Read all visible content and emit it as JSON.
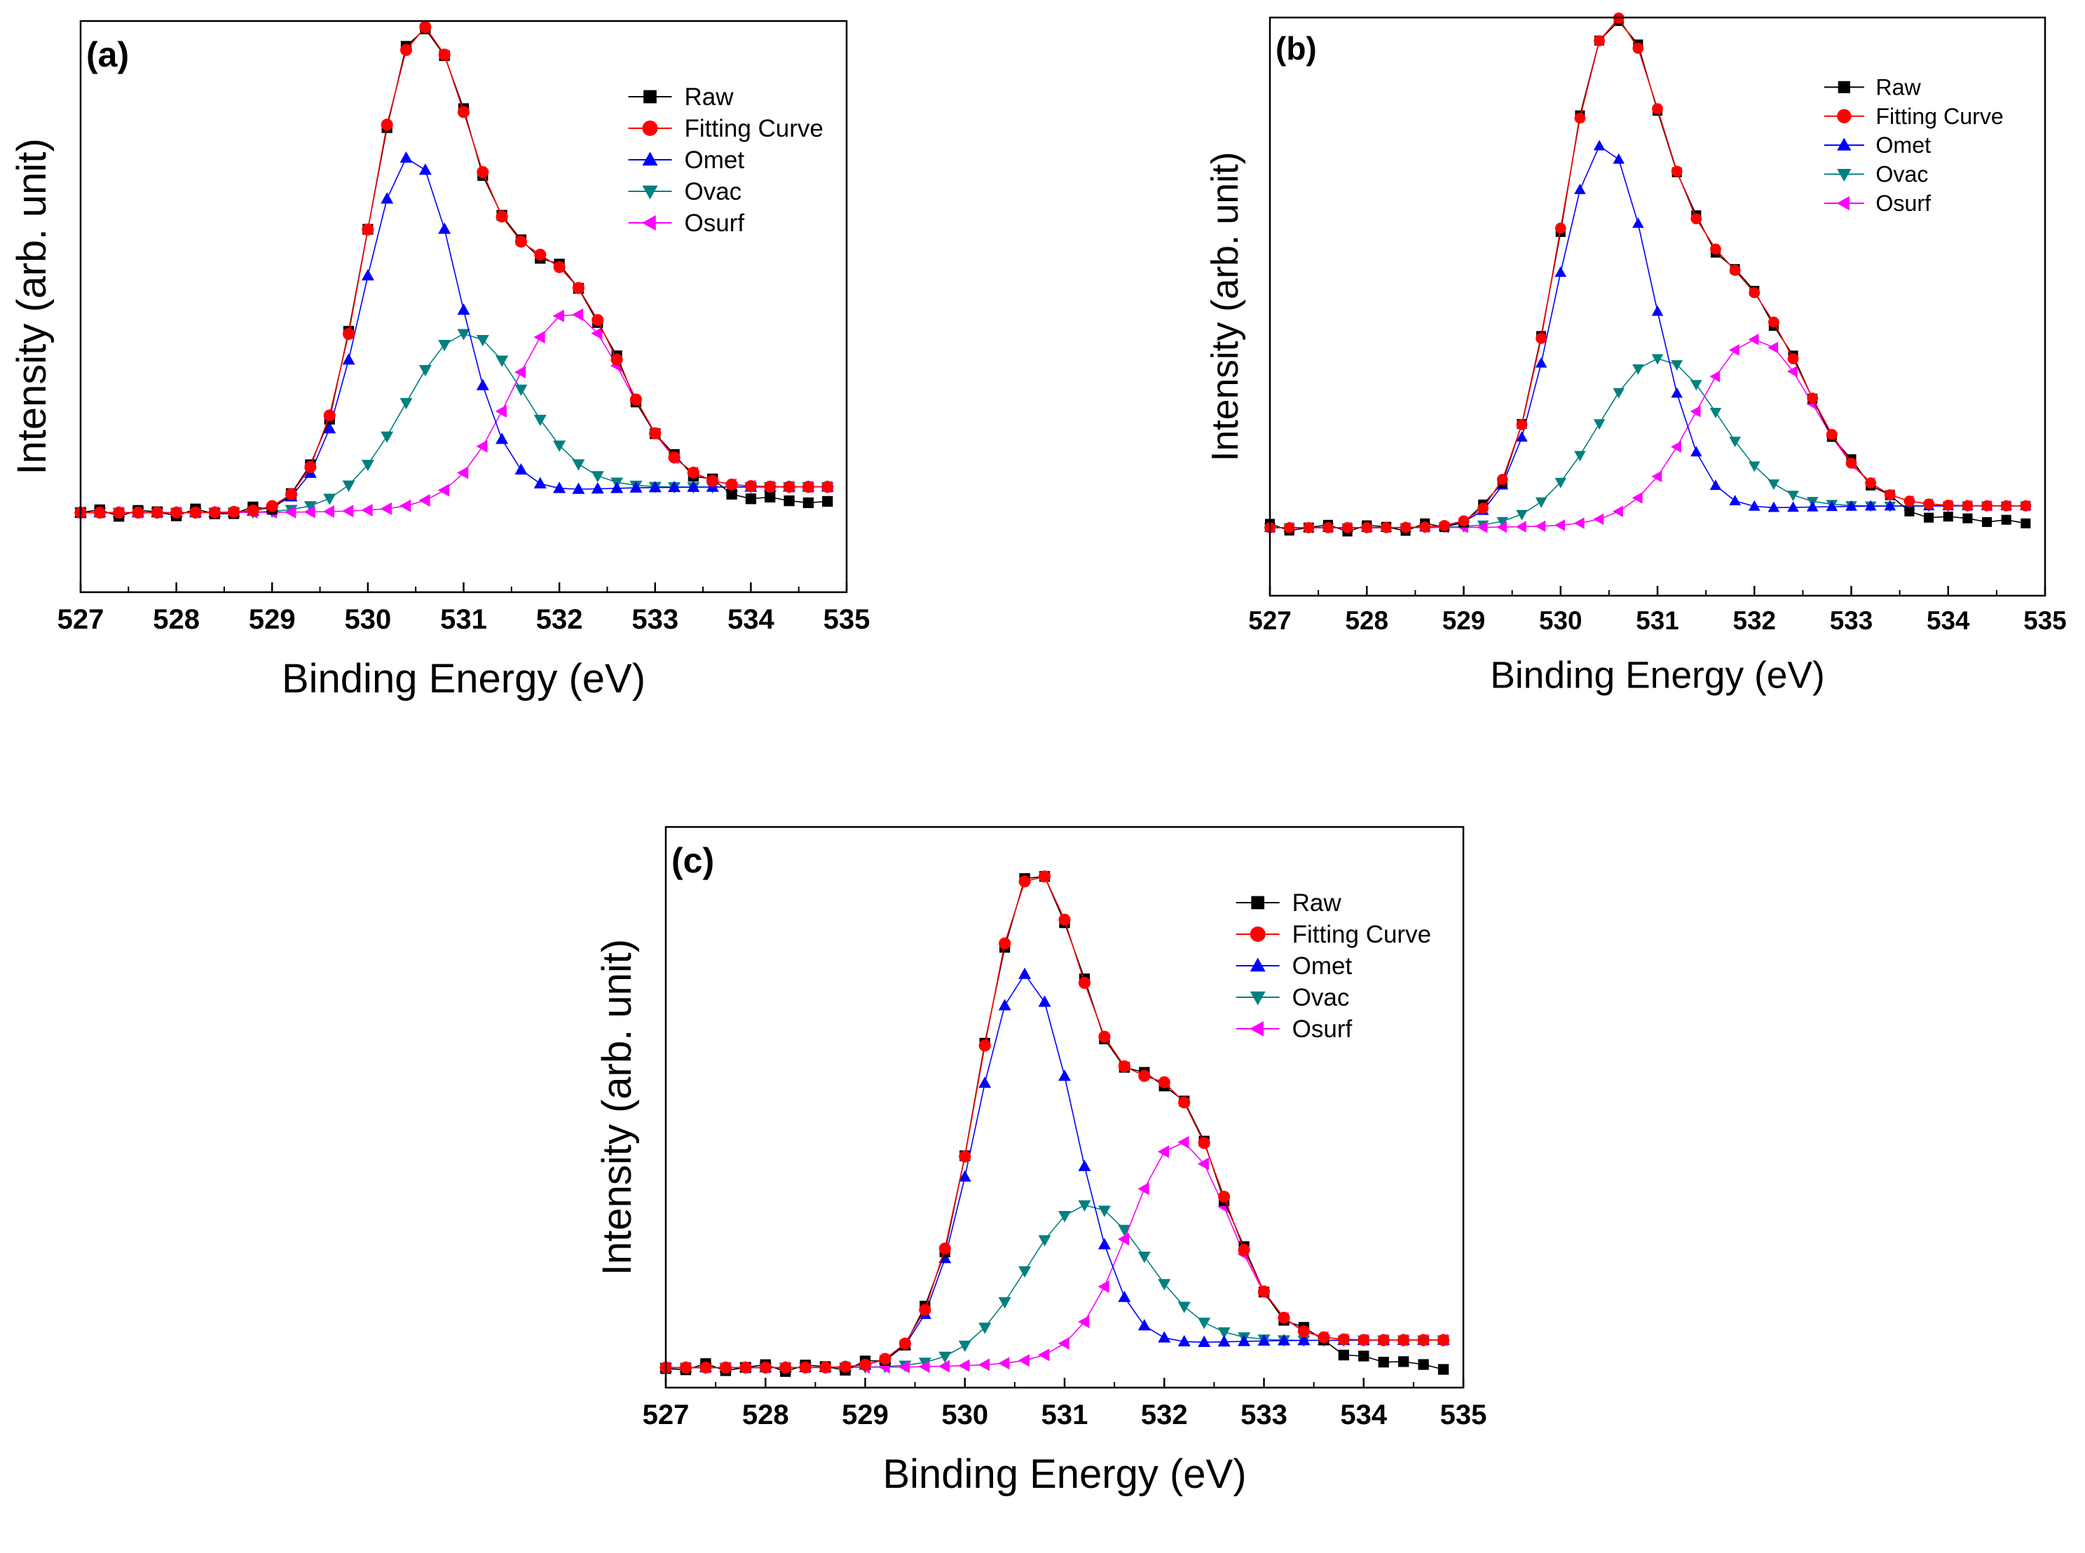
{
  "figure": {
    "legend_labels": [
      "Raw",
      "Fitting Curve",
      "Omet",
      "Ovac",
      "Osurf"
    ]
  },
  "chart_data": [
    {
      "type": "line",
      "panel": "(a)",
      "title": "",
      "xlabel": "Binding Energy (eV)",
      "ylabel": "Intensity (arb. unit)",
      "xlim": [
        527,
        535
      ],
      "ylim": [
        -0.17,
        1.05
      ],
      "x_ticks": [
        527,
        528,
        529,
        530,
        531,
        532,
        533,
        534,
        535
      ],
      "y_ticks_shown": false,
      "legend_position": "top-right",
      "data_range": [
        527.0,
        534.8
      ],
      "step": 0.2,
      "components": [
        {
          "name": "Omet",
          "center": 530.45,
          "amplitude": 0.752,
          "sigma": 0.5
        },
        {
          "name": "Ovac",
          "center": 531.0,
          "amplitude": 0.36,
          "sigma": 0.62
        },
        {
          "name": "Osurf",
          "center": 532.1,
          "amplitude": 0.38,
          "sigma": 0.58
        }
      ],
      "baseline": {
        "left": 0.0,
        "right": 0.055,
        "center": 531.2,
        "width": 0.5
      },
      "raw_tail": {
        "start": 533.8,
        "end_value": 0.02
      },
      "series": [
        {
          "name": "Raw",
          "color": "#000000",
          "marker": "square"
        },
        {
          "name": "Fitting Curve",
          "color": "#ff0000",
          "marker": "circle"
        },
        {
          "name": "Omet",
          "color": "#0000ff",
          "marker": "triangle-up"
        },
        {
          "name": "Ovac",
          "color": "#008080",
          "marker": "triangle-down"
        },
        {
          "name": "Osurf",
          "color": "#ff00ff",
          "marker": "triangle-left"
        }
      ]
    },
    {
      "type": "line",
      "panel": "(b)",
      "title": "",
      "xlabel": "Binding Energy (eV)",
      "ylabel": "Intensity (arb. unit)",
      "xlim": [
        527,
        535
      ],
      "ylim": [
        -0.14,
        1.05
      ],
      "x_ticks": [
        527,
        528,
        529,
        530,
        531,
        532,
        533,
        534,
        535
      ],
      "y_ticks_shown": false,
      "legend_position": "top-right",
      "data_range": [
        527.0,
        534.8
      ],
      "step": 0.2,
      "components": [
        {
          "name": "Omet",
          "center": 530.45,
          "amplitude": 0.782,
          "sigma": 0.5
        },
        {
          "name": "Ovac",
          "center": 531.0,
          "amplitude": 0.33,
          "sigma": 0.62
        },
        {
          "name": "Osurf",
          "center": 532.0,
          "amplitude": 0.35,
          "sigma": 0.6
        }
      ],
      "baseline": {
        "left": 0.0,
        "right": 0.045,
        "center": 531.2,
        "width": 0.5
      },
      "raw_tail": {
        "start": 533.6,
        "end_value": 0.01
      },
      "series": [
        {
          "name": "Raw",
          "color": "#000000",
          "marker": "square"
        },
        {
          "name": "Fitting Curve",
          "color": "#ff0000",
          "marker": "circle"
        },
        {
          "name": "Omet",
          "color": "#0000ff",
          "marker": "triangle-up"
        },
        {
          "name": "Ovac",
          "color": "#008080",
          "marker": "triangle-down"
        },
        {
          "name": "Osurf",
          "color": "#ff00ff",
          "marker": "triangle-left"
        }
      ]
    },
    {
      "type": "line",
      "panel": "(c)",
      "title": "",
      "xlabel": "Binding Energy (eV)",
      "ylabel": "Intensity (arb. unit)",
      "xlim": [
        527,
        535
      ],
      "ylim": [
        -0.04,
        1.08
      ],
      "x_ticks": [
        527,
        528,
        529,
        530,
        531,
        532,
        533,
        534,
        535
      ],
      "y_ticks_shown": false,
      "legend_position": "top-right",
      "data_range": [
        527.0,
        534.8
      ],
      "step": 0.2,
      "components": [
        {
          "name": "Omet",
          "center": 530.6,
          "amplitude": 0.775,
          "sigma": 0.5
        },
        {
          "name": "Ovac",
          "center": 531.2,
          "amplitude": 0.3,
          "sigma": 0.6
        },
        {
          "name": "Osurf",
          "center": 532.15,
          "amplitude": 0.405,
          "sigma": 0.5
        }
      ],
      "baseline": {
        "left": 0.0,
        "right": 0.055,
        "center": 531.3,
        "width": 0.5
      },
      "raw_tail": {
        "start": 533.8,
        "end_value": 0.0
      },
      "series": [
        {
          "name": "Raw",
          "color": "#000000",
          "marker": "square"
        },
        {
          "name": "Fitting Curve",
          "color": "#ff0000",
          "marker": "circle"
        },
        {
          "name": "Omet",
          "color": "#0000ff",
          "marker": "triangle-up"
        },
        {
          "name": "Ovac",
          "color": "#008080",
          "marker": "triangle-down"
        },
        {
          "name": "Osurf",
          "color": "#ff00ff",
          "marker": "triangle-left"
        }
      ]
    }
  ]
}
